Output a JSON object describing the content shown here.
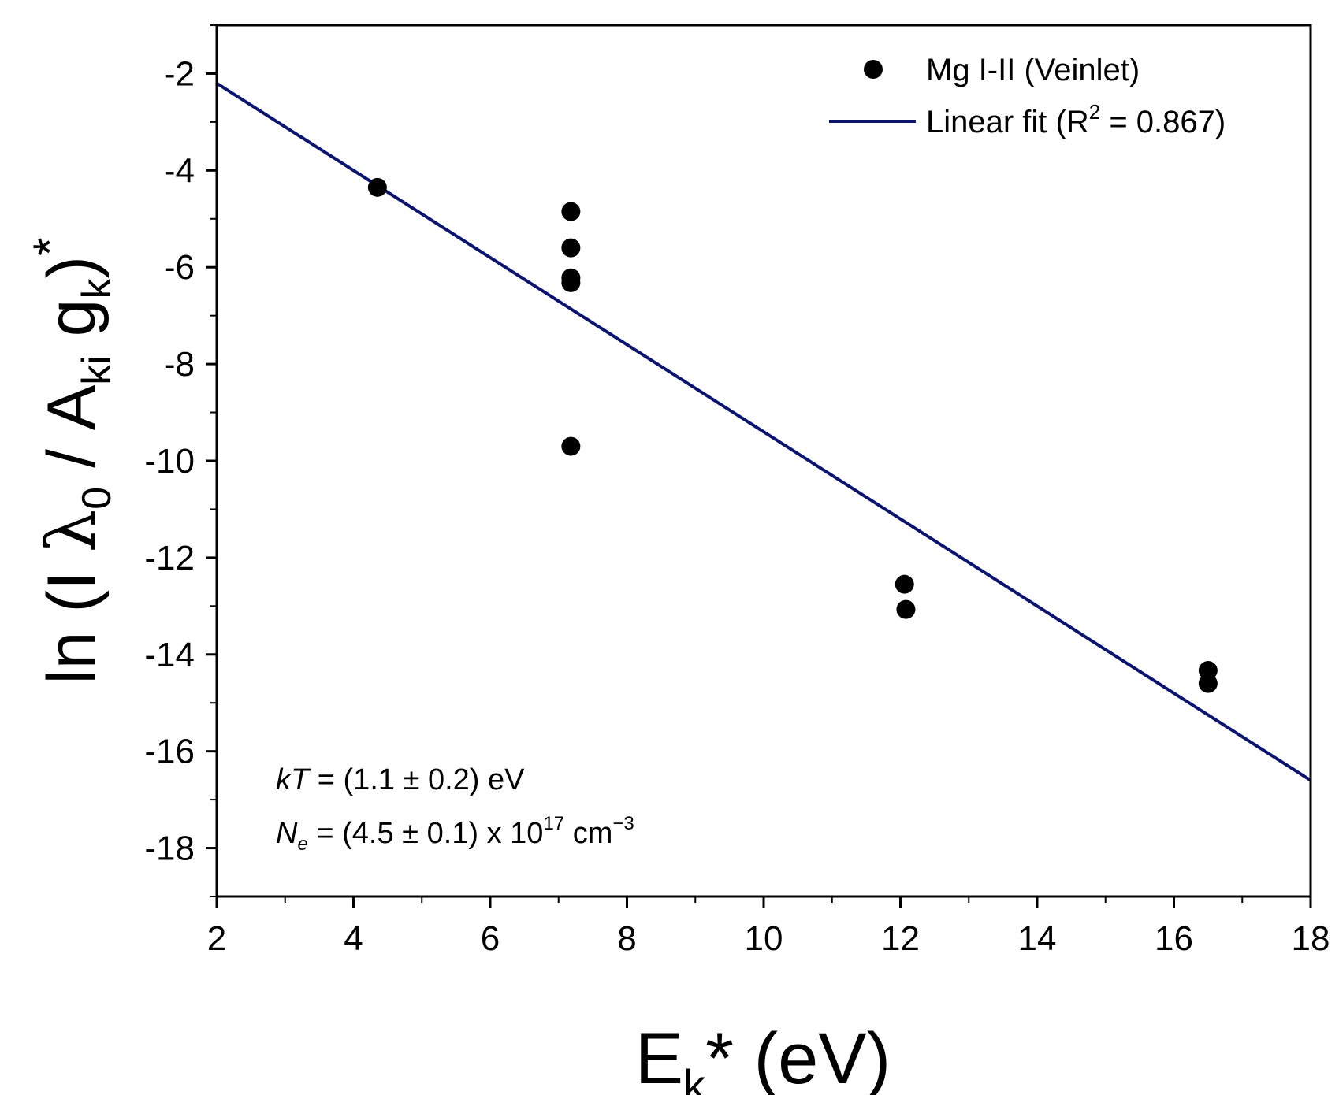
{
  "chart_data": {
    "type": "scatter",
    "title": "",
    "xlabel": {
      "base": "E",
      "sub": "k",
      "rest": "* (eV)"
    },
    "ylabel": {
      "p1": "ln (I ",
      "lambda": "λ",
      "sub0": "0",
      "p2": " / A",
      "subki": "ki",
      "p3": " g",
      "subk": "k",
      "p4": ")",
      "sup": "*"
    },
    "xlim": [
      2,
      18
    ],
    "ylim": [
      -19,
      -1
    ],
    "xticks": [
      2,
      4,
      6,
      8,
      10,
      12,
      14,
      16,
      18
    ],
    "xtick_labels": [
      "2",
      "4",
      "6",
      "8",
      "10",
      "12",
      "14",
      "16",
      "18"
    ],
    "yticks": [
      -2,
      -4,
      -6,
      -8,
      -10,
      -12,
      -14,
      -16,
      -18
    ],
    "ytick_labels": [
      "-2",
      "-4",
      "-6",
      "-8",
      "-10",
      "-12",
      "-14",
      "-16",
      "-18"
    ],
    "series": [
      {
        "name": "Mg I-II (Veinlet)",
        "kind": "scatter",
        "color": "#000000",
        "points": [
          [
            4.35,
            -4.35
          ],
          [
            7.18,
            -4.85
          ],
          [
            7.18,
            -5.6
          ],
          [
            7.18,
            -6.22
          ],
          [
            7.18,
            -6.32
          ],
          [
            7.18,
            -9.7
          ],
          [
            12.06,
            -12.55
          ],
          [
            12.08,
            -13.07
          ],
          [
            16.5,
            -14.33
          ],
          [
            16.5,
            -14.6
          ]
        ]
      },
      {
        "name": "Linear fit",
        "kind": "line",
        "color": "#0b1570",
        "endpoints": [
          [
            2,
            -2.2
          ],
          [
            18,
            -16.6
          ]
        ]
      }
    ],
    "legend": {
      "position": "top-right",
      "scatter_label": "Mg I-II (Veinlet)",
      "fit_label_prefix": "Linear fit (R",
      "fit_label_sup": "2",
      "fit_label_suffix": " = 0.867)"
    },
    "annotations": {
      "kt_italic": "kT",
      "kt_rest": " = (1.1 ± 0.2) eV",
      "ne_italic": "N",
      "ne_sub": "e",
      "ne_rest": " = (4.5 ± 0.1) x 10",
      "ne_sup": "17",
      "ne_unit": " cm",
      "ne_unit_sup": "−3"
    },
    "grid": false
  }
}
